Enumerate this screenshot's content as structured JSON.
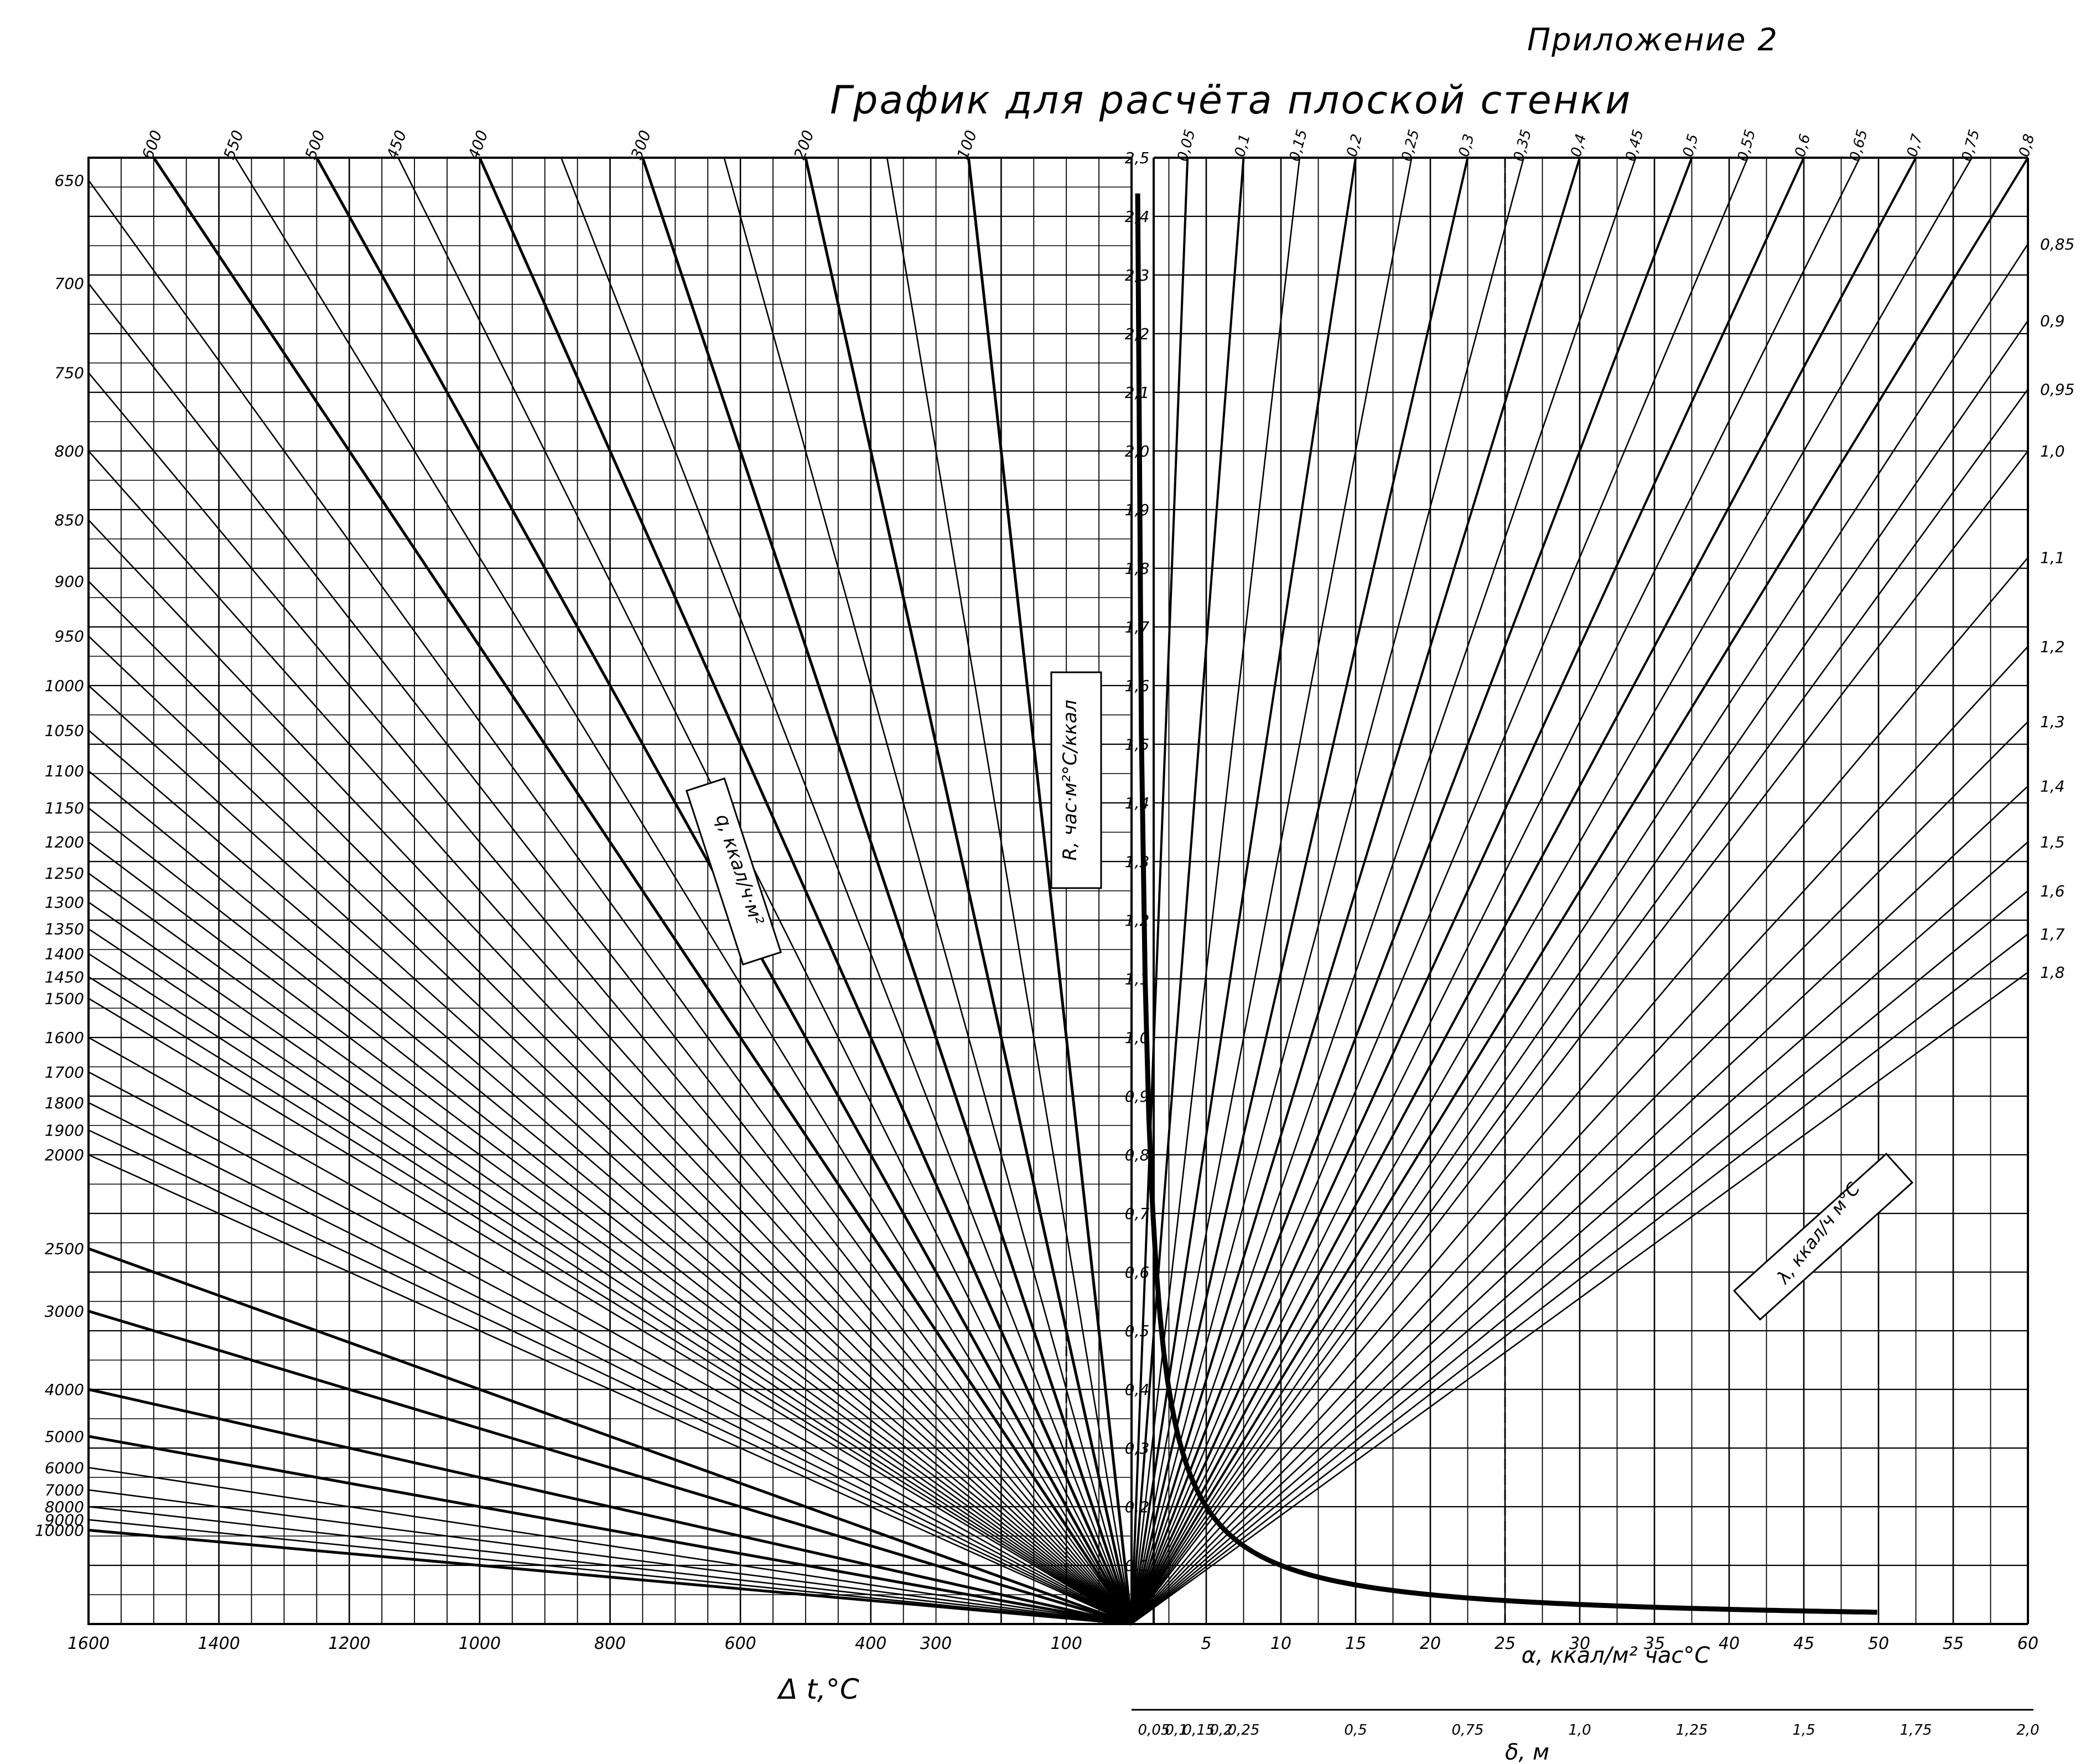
{
  "header": {
    "appendix_label": "Приложение 2",
    "title": "График для расчёта плоской стенки"
  },
  "colors": {
    "ink": "#000000",
    "paper": "#ffffff"
  },
  "chart_data": [
    {
      "type": "line",
      "panel": "left",
      "xlabel": "Δ t,°C",
      "xlim": [
        1600,
        0
      ],
      "x_ticks": [
        "1600",
        "1400",
        "1200",
        "1000",
        "800",
        "600",
        "400",
        "300",
        "100"
      ],
      "ylabel": "R, час·м²°C/ккал",
      "ylim": [
        0,
        2.5
      ],
      "series_label": "q, ккал/ч·м²",
      "left_scale_ticks": [
        "650",
        "700",
        "750",
        "800",
        "850",
        "900",
        "950",
        "1000",
        "1050",
        "1100",
        "1150",
        "1200",
        "1250",
        "1300",
        "1350",
        "1400",
        "1450",
        "1500",
        "1600",
        "1700",
        "1800",
        "1900",
        "2000",
        "2500",
        "3000",
        "4000",
        "5000",
        "6000",
        "7000",
        "8000",
        "9000",
        "10000"
      ],
      "top_ticks": [
        "600",
        "550",
        "500",
        "450",
        "400",
        "300",
        "200",
        "100"
      ],
      "series_q": [
        100,
        150,
        200,
        250,
        300,
        350,
        400,
        450,
        500,
        550,
        600,
        650,
        700,
        750,
        800,
        850,
        900,
        950,
        1000,
        1050,
        1100,
        1150,
        1200,
        1250,
        1300,
        1350,
        1400,
        1450,
        1500,
        1600,
        1700,
        1800,
        1900,
        2000,
        2500,
        3000,
        4000,
        5000,
        6000,
        7000,
        8000,
        9000,
        10000
      ],
      "bold_series": [
        100,
        200,
        300,
        400,
        500,
        600,
        2500,
        3000,
        4000,
        5000,
        10000
      ],
      "relation": "R = Δt / q",
      "grid": true
    },
    {
      "type": "line",
      "panel": "right",
      "xlabel": "α, ккал/м² час°C",
      "xlim": [
        0,
        60
      ],
      "x_ticks": [
        "5",
        "10",
        "15",
        "20",
        "25",
        "30",
        "35",
        "40",
        "45",
        "50",
        "55",
        "60"
      ],
      "x2label": "δ, м",
      "x2lim": [
        0,
        2.0
      ],
      "x2_ticks": [
        "0,05",
        "0,1",
        "0,15",
        "0,2",
        "0,25",
        "0,5",
        "0,75",
        "1,0",
        "1,25",
        "1,5",
        "1,75",
        "2,0"
      ],
      "ylabel": "R, час·м²°C/ккал",
      "ylim": [
        0,
        2.5
      ],
      "y_ticks": [
        "0,1",
        "0,2",
        "0,3",
        "0,4",
        "0,5",
        "0,6",
        "0,7",
        "0,8",
        "0,9",
        "1,0",
        "1,1",
        "1,2",
        "1,3",
        "1,4",
        "1,5",
        "1,6",
        "1,7",
        "1,8",
        "1,9",
        "2,0",
        "2,1",
        "2,2",
        "2,3",
        "2,4",
        "2,5"
      ],
      "series_label": "λ, ккал/ч м°C",
      "top_lambda_ticks": [
        "0,05",
        "0,1",
        "0,15",
        "0,2",
        "0,25",
        "0,3",
        "0,35",
        "0,4",
        "0,45",
        "0,5",
        "0,55",
        "0,6",
        "0,65",
        "0,7",
        "0,75",
        "0,8"
      ],
      "right_lambda_ticks": [
        "0,85",
        "0,9",
        "0,95",
        "1,0",
        "1,1",
        "1,2",
        "1,3",
        "1,4",
        "1,5",
        "1,6",
        "1,7",
        "1,8"
      ],
      "series_lambda": [
        0.05,
        0.1,
        0.15,
        0.2,
        0.25,
        0.3,
        0.35,
        0.4,
        0.45,
        0.5,
        0.55,
        0.6,
        0.65,
        0.7,
        0.75,
        0.8,
        0.85,
        0.9,
        0.95,
        1.0,
        1.1,
        1.2,
        1.3,
        1.4,
        1.5,
        1.6,
        1.7,
        1.8
      ],
      "relation_lambda": "R = δ / λ",
      "relation_alpha": "R = 1 / α",
      "grid": true
    }
  ]
}
